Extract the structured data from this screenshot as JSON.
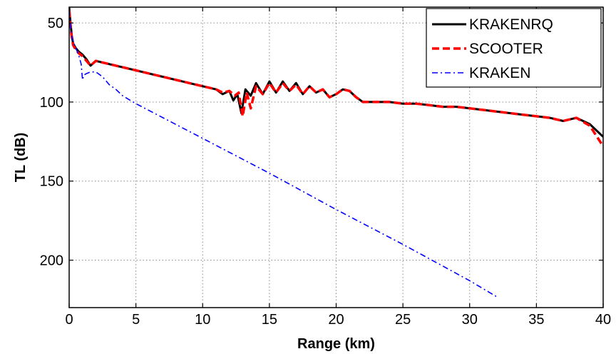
{
  "chart_data": {
    "type": "line",
    "title": "",
    "xlabel": "Range (km)",
    "ylabel": "TL (dB)",
    "xlim": [
      0,
      40
    ],
    "ylim": [
      230,
      40
    ],
    "y_reversed": true,
    "grid": true,
    "grid_style": "dotted",
    "legend_position": "top-right",
    "xticks": [
      0,
      5,
      10,
      15,
      20,
      25,
      30,
      35,
      40
    ],
    "yticks": [
      50,
      100,
      150,
      200
    ],
    "series": [
      {
        "name": "KRAKENRQ",
        "color": "#000000",
        "style": "solid",
        "x": [
          0,
          0.1,
          0.2,
          0.3,
          0.5,
          0.7,
          1.0,
          1.3,
          1.6,
          2.0,
          2.5,
          3,
          4,
          5,
          6,
          7,
          8,
          9,
          10,
          11,
          11.5,
          12,
          12.3,
          12.6,
          12.9,
          13.2,
          13.6,
          14,
          14.5,
          15,
          15.5,
          16,
          16.5,
          17,
          17.5,
          18,
          18.5,
          19,
          19.5,
          20,
          20.5,
          21,
          21.5,
          22,
          23,
          24,
          25,
          26,
          27,
          28,
          29,
          30,
          31,
          32,
          33,
          34,
          35,
          36,
          37,
          38,
          39,
          40
        ],
        "y": [
          40,
          50,
          58,
          63,
          66,
          68,
          70,
          73,
          77,
          74,
          75,
          76,
          78,
          80,
          82,
          84,
          86,
          88,
          90,
          92,
          95,
          93,
          99,
          95,
          107,
          92,
          96,
          88,
          95,
          87,
          94,
          87,
          93,
          88,
          95,
          90,
          94,
          92,
          97,
          95,
          92,
          93,
          97,
          100,
          100,
          100,
          101,
          101,
          102,
          103,
          103,
          104,
          105,
          106,
          107,
          108,
          109,
          110,
          112,
          110,
          114,
          122
        ]
      },
      {
        "name": "SCOOTER",
        "color": "#ff0000",
        "style": "dashed",
        "x": [
          0,
          0.1,
          0.2,
          0.3,
          0.5,
          0.7,
          1.0,
          1.3,
          1.6,
          2.0,
          2.5,
          3,
          4,
          5,
          6,
          7,
          8,
          9,
          10,
          11,
          11.5,
          12,
          12.4,
          12.7,
          13.0,
          13.3,
          13.6,
          14,
          14.5,
          15,
          15.5,
          16,
          16.5,
          17,
          17.5,
          18,
          18.5,
          19,
          19.5,
          20,
          20.5,
          21,
          21.5,
          22,
          23,
          24,
          25,
          26,
          27,
          28,
          29,
          30,
          31,
          32,
          33,
          34,
          35,
          36,
          37,
          38,
          39,
          40
        ],
        "y": [
          42,
          52,
          59,
          64,
          67,
          69,
          71,
          74,
          77,
          74,
          75,
          76,
          78,
          80,
          82,
          84,
          86,
          88,
          90,
          92,
          94,
          93,
          96,
          94,
          109,
          94,
          104,
          90,
          95,
          88,
          94,
          88,
          93,
          89,
          95,
          90,
          94,
          92,
          97,
          95,
          92,
          93,
          97,
          100,
          100,
          100,
          101,
          101,
          102,
          103,
          103,
          104,
          105,
          106,
          107,
          108,
          109,
          110,
          112,
          110,
          115,
          128
        ]
      },
      {
        "name": "KRAKEN",
        "color": "#0000ff",
        "style": "dashdot",
        "x": [
          0,
          0.1,
          0.2,
          0.3,
          0.5,
          0.7,
          0.9,
          1.0,
          1.1,
          1.3,
          1.6,
          2.0,
          2.5,
          3.0,
          3.5,
          4.0,
          5,
          10,
          15,
          20,
          25,
          30,
          32
        ],
        "y": [
          42,
          52,
          58,
          62,
          66,
          70,
          76,
          86,
          83,
          82,
          81,
          81,
          84,
          89,
          92,
          96,
          101,
          123,
          145,
          168,
          190,
          213,
          223
        ]
      }
    ]
  }
}
